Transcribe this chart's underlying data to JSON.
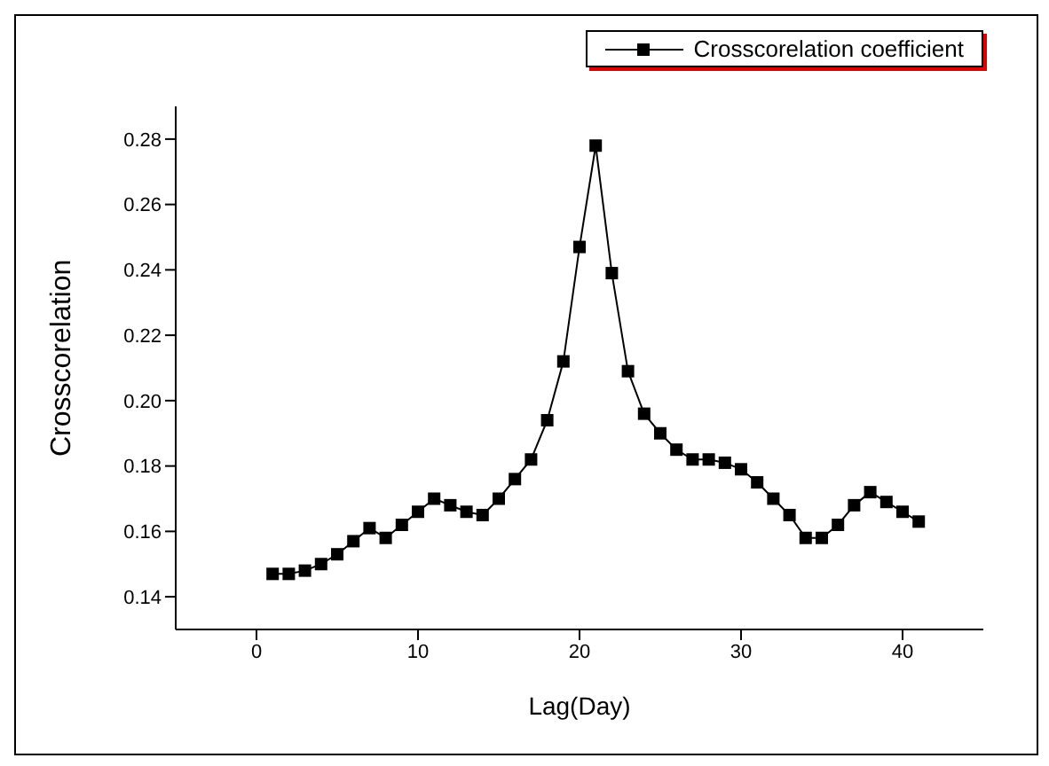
{
  "chart_data": {
    "type": "line",
    "xlabel": "Lag(Day)",
    "ylabel": "Crosscorelation",
    "x": [
      1,
      2,
      3,
      4,
      5,
      6,
      7,
      8,
      9,
      10,
      11,
      12,
      13,
      14,
      15,
      16,
      17,
      18,
      19,
      20,
      21,
      22,
      23,
      24,
      25,
      26,
      27,
      28,
      29,
      30,
      31,
      32,
      33,
      34,
      35,
      36,
      37,
      38,
      39,
      40,
      41
    ],
    "series": [
      {
        "name": "Crosscorelation coefficient",
        "color": "#000000",
        "values": [
          0.147,
          0.147,
          0.148,
          0.15,
          0.153,
          0.157,
          0.161,
          0.158,
          0.162,
          0.166,
          0.17,
          0.168,
          0.166,
          0.165,
          0.17,
          0.176,
          0.182,
          0.194,
          0.212,
          0.247,
          0.278,
          0.239,
          0.209,
          0.196,
          0.19,
          0.185,
          0.182,
          0.182,
          0.181,
          0.179,
          0.175,
          0.17,
          0.165,
          0.158,
          0.158,
          0.162,
          0.168,
          0.172,
          0.169,
          0.166,
          0.163
        ]
      }
    ],
    "xlim": [
      -5,
      45
    ],
    "xticks": [
      0,
      10,
      20,
      30,
      40
    ],
    "ylim": [
      0.13,
      0.29
    ],
    "yticks": [
      0.14,
      0.16,
      0.18,
      {
        "value": 0.2,
        "label": "0.20"
      },
      0.22,
      0.24,
      0.26,
      0.28
    ],
    "marker": "square",
    "legend": "top right",
    "grid": false
  }
}
